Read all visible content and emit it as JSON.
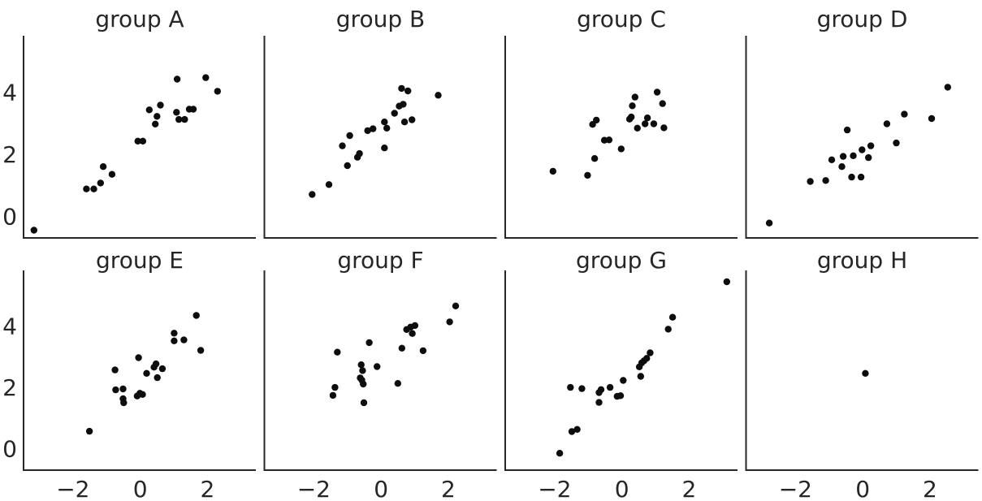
{
  "figure": {
    "background": "#ffffff",
    "text_color": "#262626",
    "axis_color": "#262626",
    "marker_color": "#0d0d0d"
  },
  "chart_data": {
    "type": "scatter",
    "title": "",
    "xlabel": "",
    "ylabel": "",
    "layout": "facet grid 2 rows x 4 cols, shared axes, left+bottom spines only, no gridlines, no legend, no tick marks",
    "xlim": [
      -3.47,
      3.44
    ],
    "ylim": [
      -0.7,
      5.82
    ],
    "xticks": [
      -2,
      0,
      2
    ],
    "yticks": [
      0,
      2,
      4
    ],
    "marker": "filled black circle, radius ~4px",
    "facets": [
      {
        "title": "group A",
        "points": [
          [
            -3.16,
            -0.45
          ],
          [
            -1.6,
            0.88
          ],
          [
            -1.38,
            0.88
          ],
          [
            -1.18,
            1.07
          ],
          [
            -1.1,
            1.6
          ],
          [
            -0.84,
            1.35
          ],
          [
            -0.07,
            2.42
          ],
          [
            0.08,
            2.42
          ],
          [
            0.27,
            3.43
          ],
          [
            0.45,
            2.97
          ],
          [
            0.5,
            3.22
          ],
          [
            0.6,
            3.58
          ],
          [
            1.08,
            3.35
          ],
          [
            1.1,
            4.42
          ],
          [
            1.15,
            3.12
          ],
          [
            1.32,
            3.12
          ],
          [
            1.46,
            3.45
          ],
          [
            1.58,
            3.45
          ],
          [
            1.95,
            4.47
          ],
          [
            2.3,
            4.03
          ]
        ]
      },
      {
        "title": "group B",
        "points": [
          [
            -2.05,
            0.7
          ],
          [
            -1.55,
            1.02
          ],
          [
            -1.15,
            2.27
          ],
          [
            -1.0,
            1.63
          ],
          [
            -0.93,
            2.6
          ],
          [
            -0.7,
            1.9
          ],
          [
            -0.64,
            2.02
          ],
          [
            -0.4,
            2.76
          ],
          [
            -0.24,
            2.82
          ],
          [
            0.1,
            2.2
          ],
          [
            0.1,
            3.04
          ],
          [
            0.17,
            2.84
          ],
          [
            0.4,
            3.32
          ],
          [
            0.54,
            3.55
          ],
          [
            0.61,
            4.12
          ],
          [
            0.66,
            3.61
          ],
          [
            0.7,
            3.04
          ],
          [
            0.8,
            4.04
          ],
          [
            0.92,
            3.11
          ],
          [
            1.7,
            3.9
          ]
        ]
      },
      {
        "title": "group C",
        "points": [
          [
            -2.05,
            1.45
          ],
          [
            -1.02,
            1.32
          ],
          [
            -0.87,
            2.96
          ],
          [
            -0.81,
            1.86
          ],
          [
            -0.76,
            3.1
          ],
          [
            -0.52,
            2.45
          ],
          [
            -0.38,
            2.46
          ],
          [
            -0.02,
            2.17
          ],
          [
            0.23,
            3.13
          ],
          [
            0.28,
            3.2
          ],
          [
            0.31,
            3.56
          ],
          [
            0.39,
            3.84
          ],
          [
            0.46,
            2.84
          ],
          [
            0.69,
            2.98
          ],
          [
            0.76,
            3.17
          ],
          [
            0.95,
            2.98
          ],
          [
            1.05,
            4.0
          ],
          [
            1.21,
            3.63
          ],
          [
            1.25,
            2.85
          ]
        ]
      },
      {
        "title": "group D",
        "points": [
          [
            -2.78,
            -0.22
          ],
          [
            -1.56,
            1.12
          ],
          [
            -1.1,
            1.15
          ],
          [
            -0.92,
            1.82
          ],
          [
            -0.62,
            1.6
          ],
          [
            -0.58,
            1.93
          ],
          [
            -0.46,
            2.78
          ],
          [
            -0.33,
            1.26
          ],
          [
            -0.28,
            1.95
          ],
          [
            -0.05,
            1.26
          ],
          [
            -0.02,
            2.14
          ],
          [
            0.17,
            1.89
          ],
          [
            0.24,
            2.27
          ],
          [
            0.72,
            2.98
          ],
          [
            1.0,
            2.36
          ],
          [
            1.24,
            3.29
          ],
          [
            2.05,
            3.15
          ],
          [
            2.53,
            4.16
          ]
        ]
      },
      {
        "title": "group E",
        "points": [
          [
            -1.51,
            0.57
          ],
          [
            -0.75,
            2.57
          ],
          [
            -0.73,
            1.92
          ],
          [
            -0.51,
            1.95
          ],
          [
            -0.51,
            1.63
          ],
          [
            -0.49,
            1.5
          ],
          [
            -0.09,
            1.72
          ],
          [
            -0.01,
            1.81
          ],
          [
            0.07,
            1.77
          ],
          [
            -0.05,
            2.97
          ],
          [
            0.19,
            2.46
          ],
          [
            0.41,
            2.66
          ],
          [
            0.47,
            2.77
          ],
          [
            0.51,
            2.32
          ],
          [
            0.66,
            2.61
          ],
          [
            1.01,
            3.77
          ],
          [
            1.01,
            3.52
          ],
          [
            1.3,
            3.55
          ],
          [
            1.67,
            4.35
          ],
          [
            1.8,
            3.21
          ]
        ]
      },
      {
        "title": "group F",
        "points": [
          [
            -1.43,
            1.74
          ],
          [
            -1.37,
            2.0
          ],
          [
            -1.3,
            3.15
          ],
          [
            -0.62,
            2.31
          ],
          [
            -0.59,
            2.74
          ],
          [
            -0.57,
            2.24
          ],
          [
            -0.55,
            2.55
          ],
          [
            -0.53,
            2.11
          ],
          [
            -0.51,
            1.5
          ],
          [
            -0.35,
            3.46
          ],
          [
            -0.12,
            2.68
          ],
          [
            0.5,
            2.13
          ],
          [
            0.62,
            3.28
          ],
          [
            0.76,
            3.89
          ],
          [
            0.88,
            3.97
          ],
          [
            0.93,
            3.76
          ],
          [
            1.01,
            4.02
          ],
          [
            1.25,
            3.2
          ],
          [
            2.04,
            4.14
          ],
          [
            2.22,
            4.66
          ]
        ]
      },
      {
        "title": "group G",
        "points": [
          [
            -1.85,
            -0.15
          ],
          [
            -1.53,
            2.0
          ],
          [
            -1.49,
            0.56
          ],
          [
            -1.33,
            0.63
          ],
          [
            -1.19,
            1.96
          ],
          [
            -0.68,
            1.83
          ],
          [
            -0.68,
            1.51
          ],
          [
            -0.62,
            1.93
          ],
          [
            -0.35,
            2.0
          ],
          [
            -0.14,
            1.71
          ],
          [
            -0.04,
            1.73
          ],
          [
            0.04,
            2.23
          ],
          [
            0.52,
            2.67
          ],
          [
            0.56,
            2.36
          ],
          [
            0.59,
            2.8
          ],
          [
            0.66,
            2.87
          ],
          [
            0.74,
            2.95
          ],
          [
            0.84,
            3.13
          ],
          [
            1.38,
            3.9
          ],
          [
            1.51,
            4.29
          ],
          [
            3.12,
            5.45
          ]
        ]
      },
      {
        "title": "group H",
        "points": [
          [
            0.08,
            2.46
          ]
        ]
      }
    ]
  }
}
